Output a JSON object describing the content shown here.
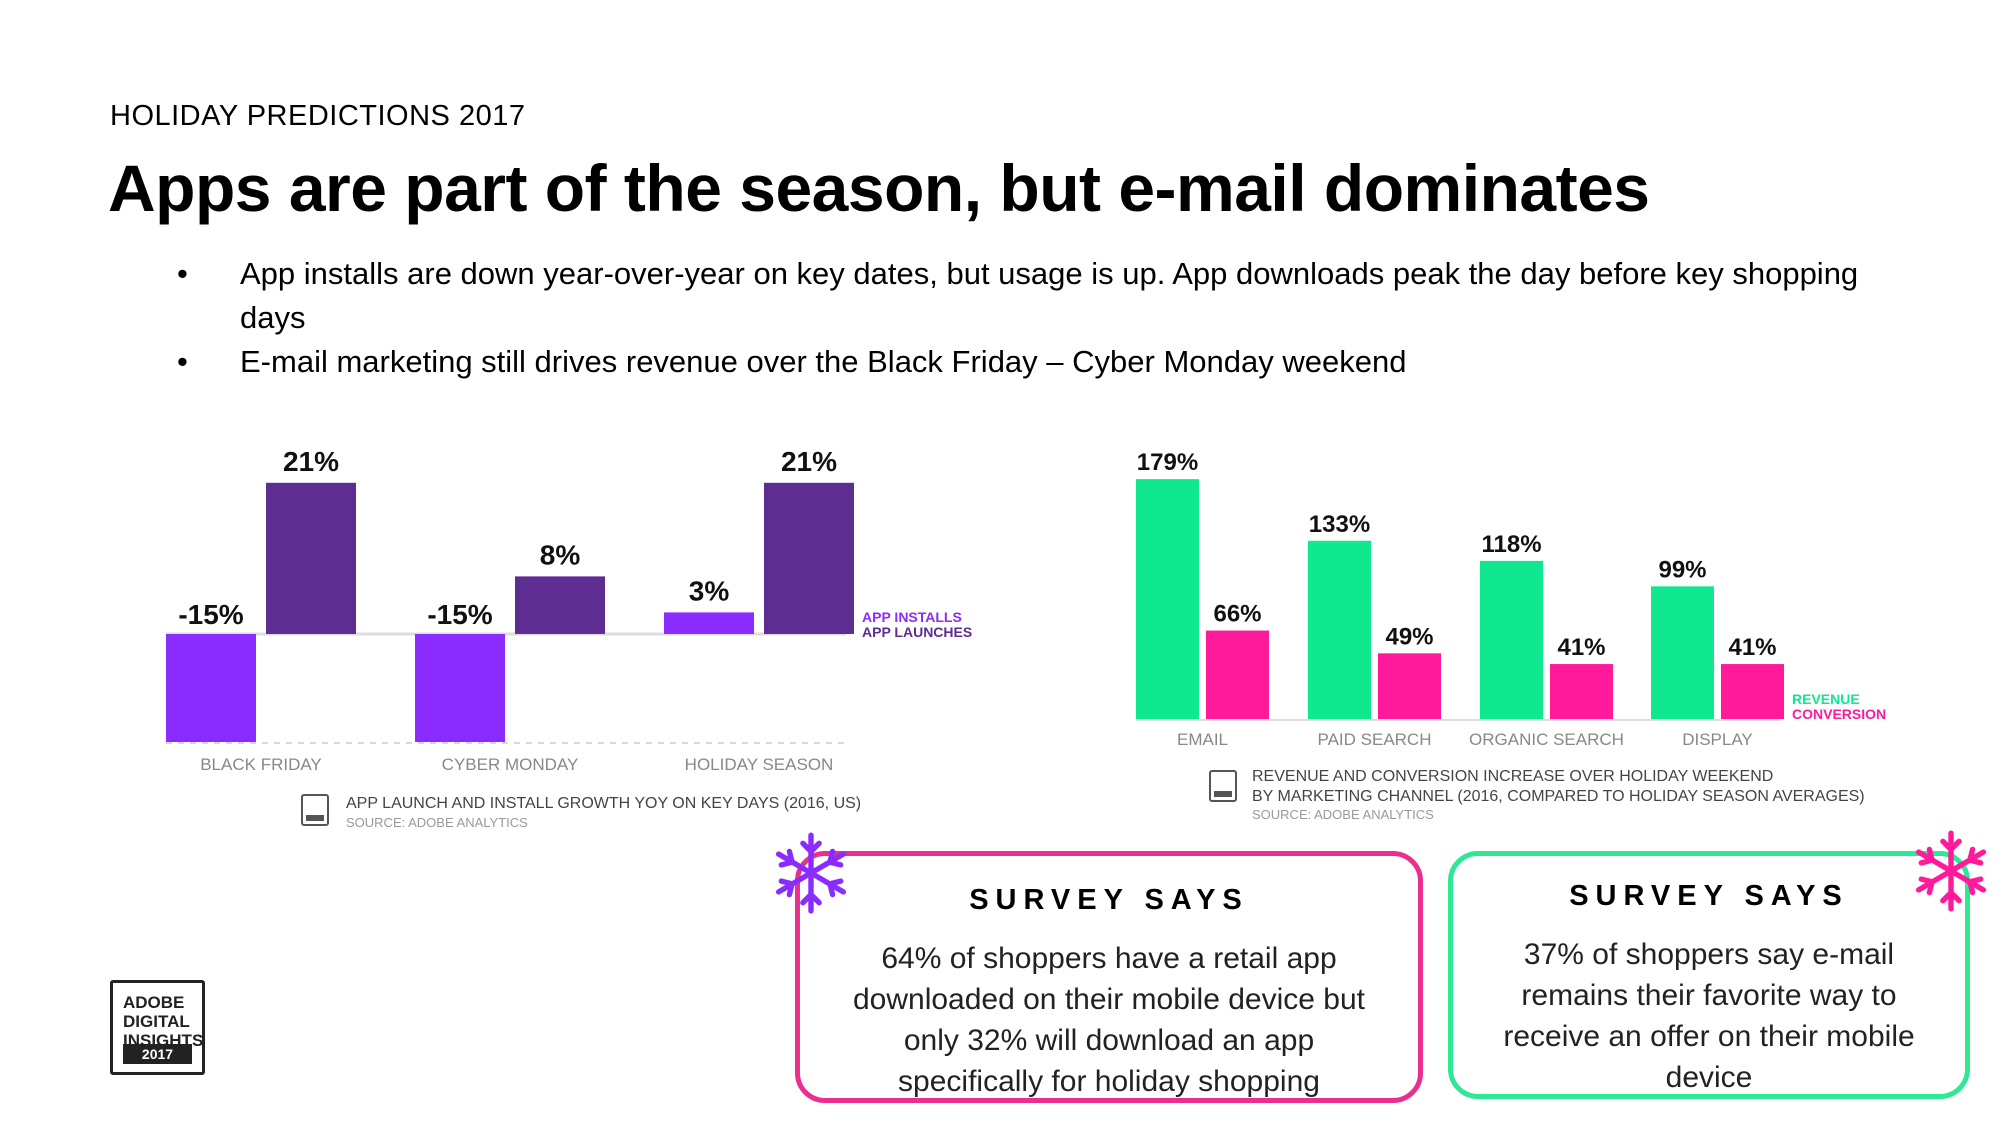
{
  "header": {
    "kicker": "HOLIDAY PREDICTIONS 2017",
    "title": "Apps are part of the season, but e-mail dominates"
  },
  "bullets": [
    "App installs are down year-over-year on key dates, but usage is up. App downloads peak the day before key shopping days",
    "E-mail marketing still drives revenue over the Black Friday – Cyber Monday weekend"
  ],
  "colors": {
    "installs": "#8b2cff",
    "launches": "#5e2d91",
    "revenue": "#10e88f",
    "conversion": "#ff1a9c",
    "survey_pink": "#ea2f8f",
    "survey_green": "#2ee894"
  },
  "chart_data": [
    {
      "type": "bar",
      "title": "APP LAUNCH AND INSTALL GROWTH YOY ON KEY DAYS (2016, US)",
      "source": "SOURCE: ADOBE ANALYTICS",
      "categories": [
        "BLACK FRIDAY",
        "CYBER MONDAY",
        "HOLIDAY SEASON"
      ],
      "series": [
        {
          "name": "APP INSTALLS",
          "values": [
            -15,
            -15,
            3
          ],
          "labels": [
            "-15%",
            "-15%",
            "3%"
          ]
        },
        {
          "name": "APP LAUNCHES",
          "values": [
            21,
            8,
            21
          ],
          "labels": [
            "21%",
            "8%",
            "21%"
          ]
        }
      ],
      "ylim": [
        -15,
        21
      ],
      "grid": false,
      "legend": "right"
    },
    {
      "type": "bar",
      "title": "REVENUE AND CONVERSION INCREASE OVER HOLIDAY WEEKEND",
      "title_line2": "BY MARKETING CHANNEL (2016, COMPARED TO HOLIDAY SEASON AVERAGES)",
      "source": "SOURCE: ADOBE ANALYTICS",
      "categories": [
        "EMAIL",
        "PAID SEARCH",
        "ORGANIC SEARCH",
        "DISPLAY"
      ],
      "series": [
        {
          "name": "REVENUE",
          "values": [
            179,
            133,
            118,
            99
          ],
          "labels": [
            "179%",
            "133%",
            "118%",
            "99%"
          ]
        },
        {
          "name": "CONVERSION",
          "values": [
            66,
            49,
            41,
            41
          ],
          "labels": [
            "66%",
            "49%",
            "41%",
            "41%"
          ]
        }
      ],
      "ylim": [
        0,
        179
      ],
      "grid": false,
      "legend": "right"
    }
  ],
  "surveys": [
    {
      "heading": "SURVEY SAYS",
      "text": "64% of shoppers have a retail app downloaded on their mobile device but only 32% will download an app specifically for holiday shopping"
    },
    {
      "heading": "SURVEY SAYS",
      "text": "37% of shoppers say e-mail remains their favorite way to receive an offer on their mobile device"
    }
  ],
  "logo": {
    "text": "ADOBE\nDIGITAL\nINSIGHTS",
    "year": "2017"
  }
}
